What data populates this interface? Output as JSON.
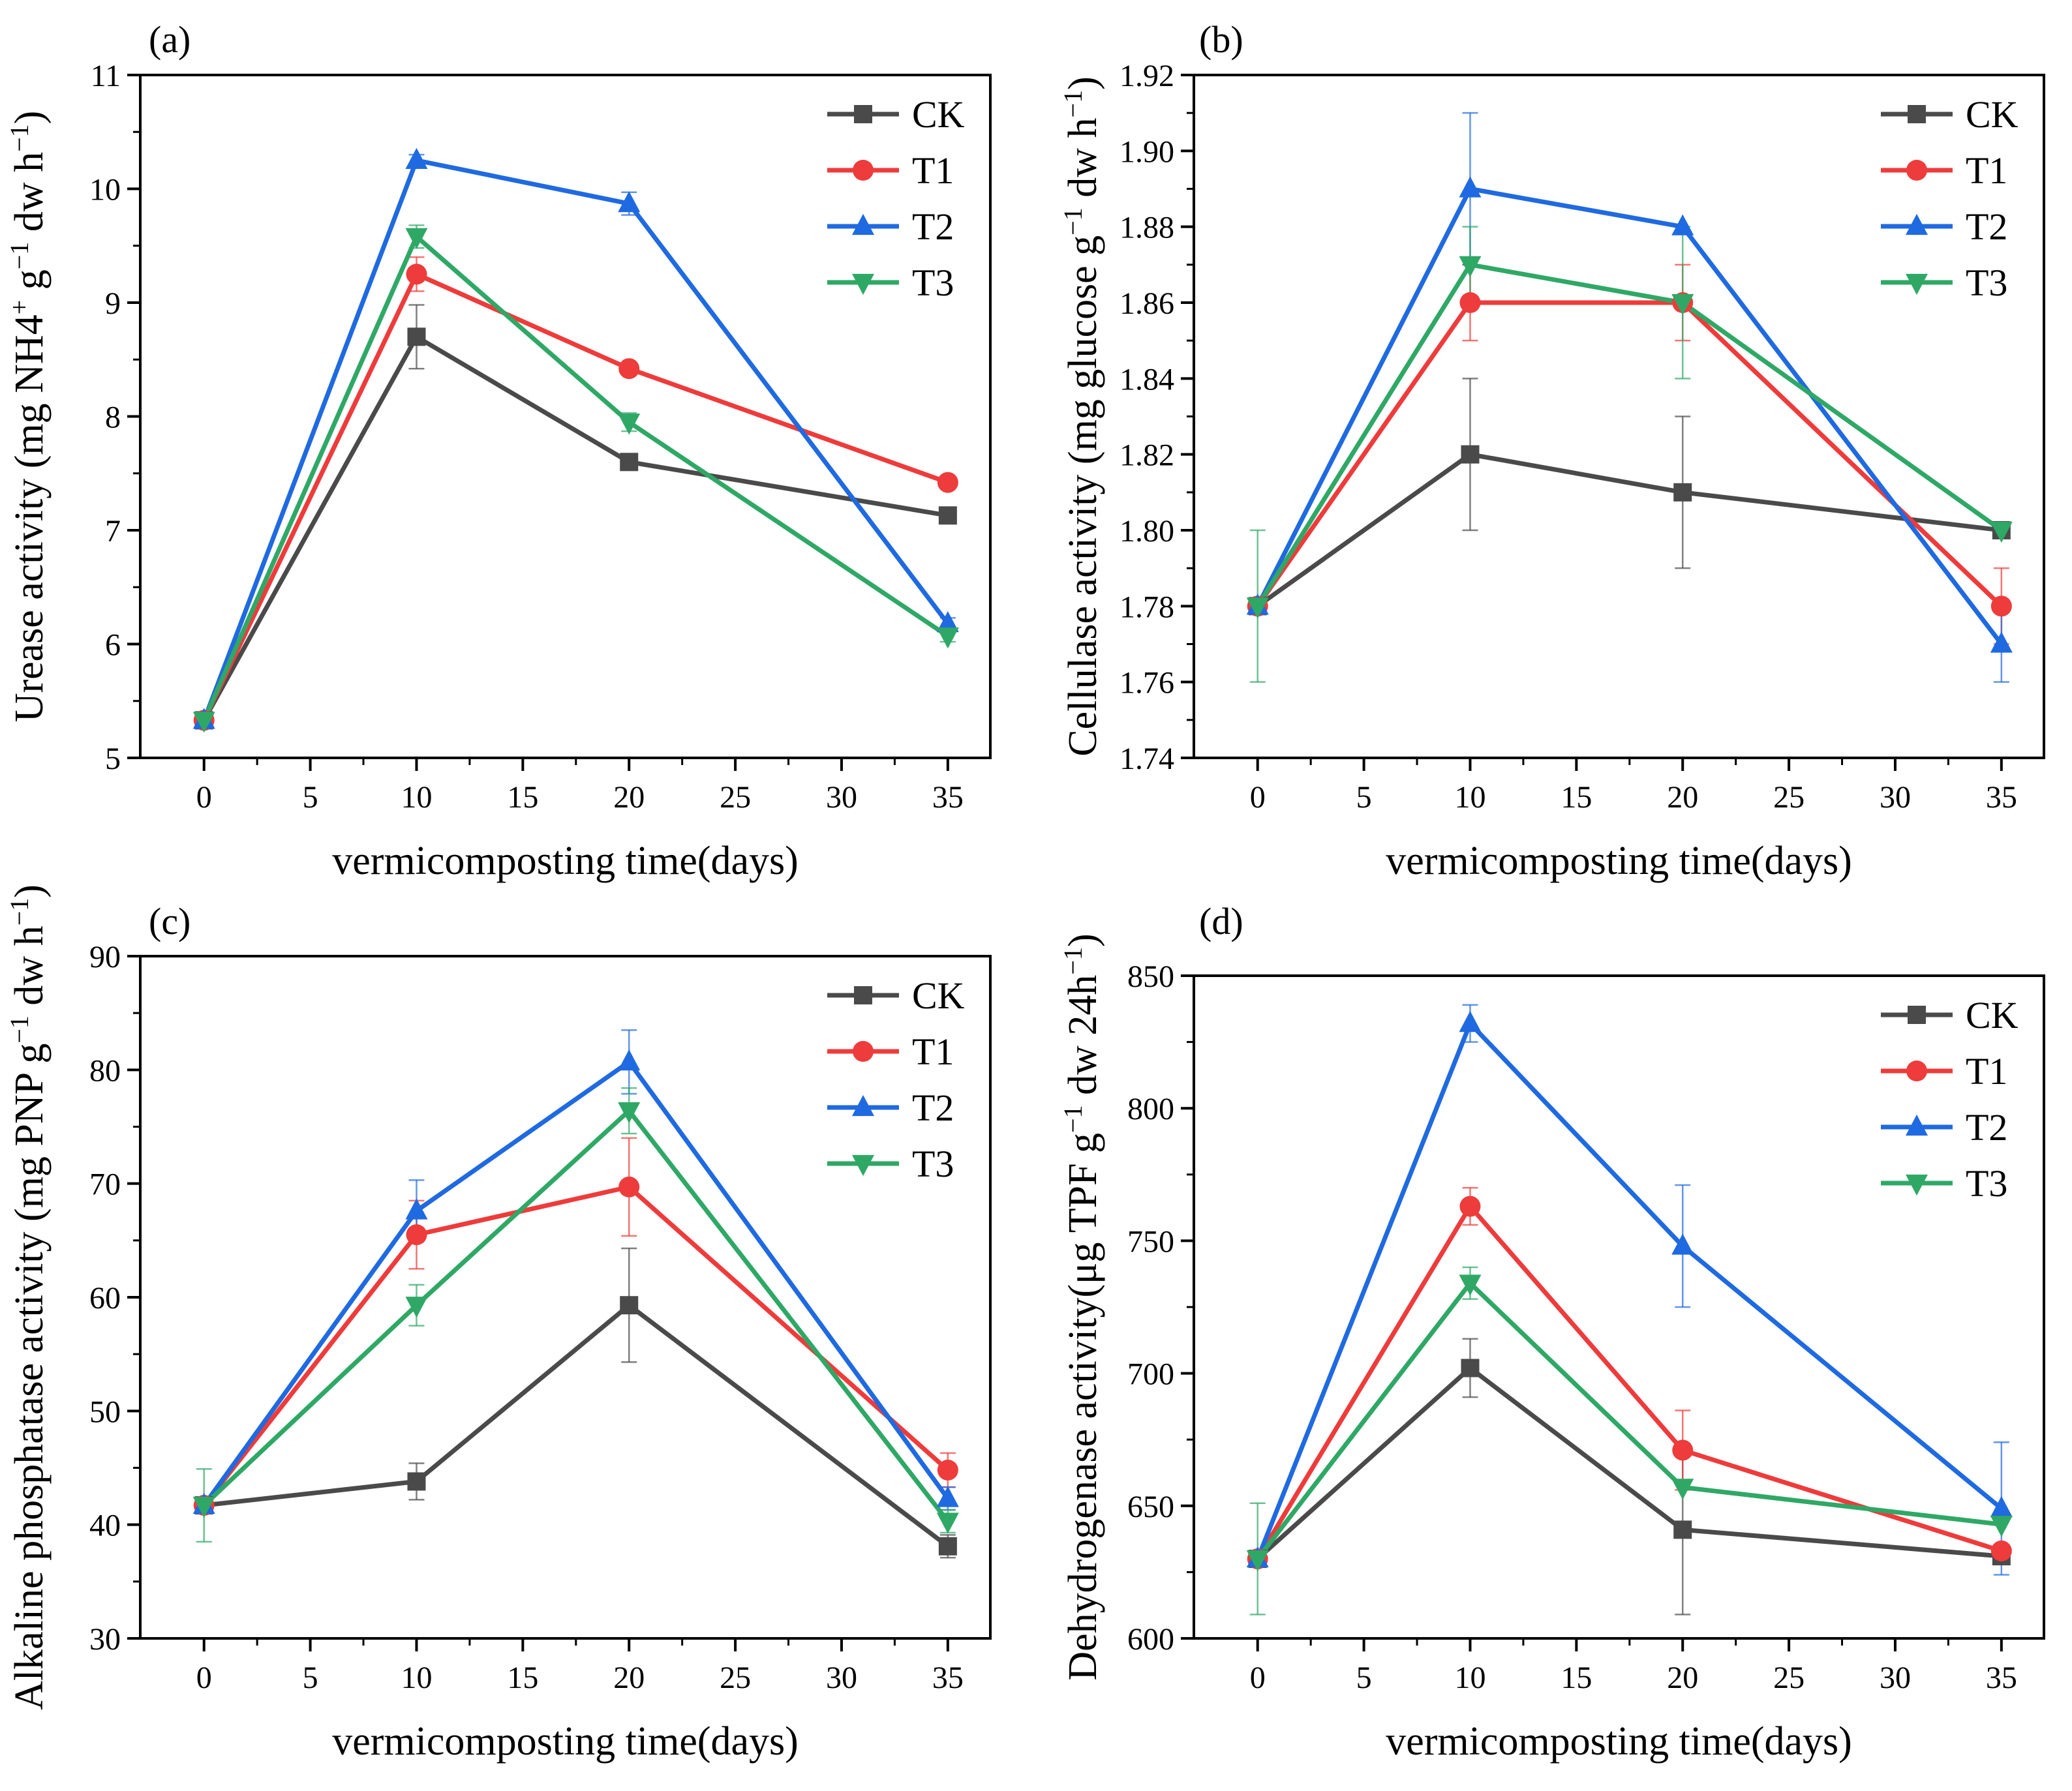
{
  "figure": {
    "background": "#ffffff"
  },
  "series_styles": {
    "CK": {
      "color": "#4a4a4a",
      "marker": "square"
    },
    "T1": {
      "color": "#ee3b3b",
      "marker": "circle"
    },
    "T2": {
      "color": "#1f6ae0",
      "marker": "triangle-up"
    },
    "T3": {
      "color": "#2fa866",
      "marker": "triangle-down"
    }
  },
  "chart_data": [
    {
      "type": "line",
      "panel_label": "(a)",
      "xlabel": "vermicomposting time(days)",
      "ylabel_parts": [
        {
          "text": "Urease activity (mg NH4"
        },
        {
          "text": "+",
          "sup": true
        },
        {
          "text": " g"
        },
        {
          "text": "−1",
          "sup": true
        },
        {
          "text": " dw h"
        },
        {
          "text": "−1",
          "sup": true
        },
        {
          "text": ")"
        }
      ],
      "x": [
        0,
        10,
        20,
        35
      ],
      "xlim": [
        -3,
        37
      ],
      "xticks": [
        0,
        5,
        10,
        15,
        20,
        25,
        30,
        35
      ],
      "ylim": [
        5,
        11
      ],
      "yticks": [
        5,
        6,
        7,
        8,
        9,
        10,
        11
      ],
      "ytick_labels": [
        "5",
        "6",
        "7",
        "8",
        "9",
        "10",
        "11"
      ],
      "legend_position": "top-right",
      "series": [
        {
          "name": "CK",
          "values": [
            5.33,
            8.7,
            7.6,
            7.13
          ],
          "errors": [
            0.05,
            0.28,
            0.05,
            0.05
          ]
        },
        {
          "name": "T1",
          "values": [
            5.33,
            9.25,
            8.42,
            7.42
          ],
          "errors": [
            0.05,
            0.15,
            0.05,
            0.05
          ]
        },
        {
          "name": "T2",
          "values": [
            5.33,
            10.25,
            9.87,
            6.18
          ],
          "errors": [
            0.05,
            0.05,
            0.1,
            0.05
          ]
        },
        {
          "name": "T3",
          "values": [
            5.33,
            9.58,
            7.95,
            6.07
          ],
          "errors": [
            0.05,
            0.1,
            0.08,
            0.05
          ]
        }
      ]
    },
    {
      "type": "line",
      "panel_label": "(b)",
      "xlabel": "vermicomposting time(days)",
      "ylabel_parts": [
        {
          "text": "Cellulase activity (mg glucose g"
        },
        {
          "text": "−1",
          "sup": true
        },
        {
          "text": " dw h"
        },
        {
          "text": "−1",
          "sup": true
        },
        {
          "text": ")"
        }
      ],
      "x": [
        0,
        10,
        20,
        35
      ],
      "xlim": [
        -3,
        37
      ],
      "xticks": [
        0,
        5,
        10,
        15,
        20,
        25,
        30,
        35
      ],
      "ylim": [
        1.74,
        1.92
      ],
      "yticks": [
        1.74,
        1.76,
        1.78,
        1.8,
        1.82,
        1.84,
        1.86,
        1.88,
        1.9,
        1.92
      ],
      "ytick_labels": [
        "1.74",
        "1.76",
        "1.78",
        "1.80",
        "1.82",
        "1.84",
        "1.86",
        "1.88",
        "1.90",
        "1.92"
      ],
      "legend_position": "top-right",
      "series": [
        {
          "name": "CK",
          "values": [
            1.78,
            1.82,
            1.81,
            1.8
          ],
          "errors": [
            0.0,
            0.02,
            0.02,
            0.0
          ]
        },
        {
          "name": "T1",
          "values": [
            1.78,
            1.86,
            1.86,
            1.78
          ],
          "errors": [
            0.0,
            0.01,
            0.01,
            0.01
          ]
        },
        {
          "name": "T2",
          "values": [
            1.78,
            1.89,
            1.88,
            1.77
          ],
          "errors": [
            0.0,
            0.02,
            0.0,
            0.01
          ]
        },
        {
          "name": "T3",
          "values": [
            1.78,
            1.87,
            1.86,
            1.8
          ],
          "errors": [
            0.02,
            0.01,
            0.02,
            0.0
          ]
        }
      ]
    },
    {
      "type": "line",
      "panel_label": "(c)",
      "xlabel": "vermicomposting time(days)",
      "ylabel_parts": [
        {
          "text": "Alkaline phosphatase activity (mg PNP g"
        },
        {
          "text": "−1",
          "sup": true
        },
        {
          "text": " dw h"
        },
        {
          "text": "−1",
          "sup": true
        },
        {
          "text": ")"
        }
      ],
      "x": [
        0,
        10,
        20,
        35
      ],
      "xlim": [
        -3,
        37
      ],
      "xticks": [
        0,
        5,
        10,
        15,
        20,
        25,
        30,
        35
      ],
      "ylim": [
        30,
        90
      ],
      "yticks": [
        30,
        40,
        50,
        60,
        70,
        80,
        90
      ],
      "ytick_labels": [
        "30",
        "40",
        "50",
        "60",
        "70",
        "80",
        "90"
      ],
      "legend_position": "top-right",
      "series": [
        {
          "name": "CK",
          "values": [
            41.7,
            43.8,
            59.3,
            38.1
          ],
          "errors": [
            0.5,
            1.6,
            5.0,
            1.0
          ]
        },
        {
          "name": "T1",
          "values": [
            41.7,
            65.5,
            69.7,
            44.8
          ],
          "errors": [
            0.5,
            3.0,
            4.3,
            1.5
          ]
        },
        {
          "name": "T2",
          "values": [
            41.7,
            67.6,
            80.7,
            42.3
          ],
          "errors": [
            0.5,
            2.7,
            2.8,
            1.0
          ]
        },
        {
          "name": "T3",
          "values": [
            41.7,
            59.3,
            76.4,
            40.3
          ],
          "errors": [
            3.2,
            1.8,
            2.0,
            1.0
          ]
        }
      ]
    },
    {
      "type": "line",
      "panel_label": "(d)",
      "xlabel": "vermicomposting time(days)",
      "ylabel_parts": [
        {
          "text": "Dehydrogenase activity(μg TPF g"
        },
        {
          "text": "−1",
          "sup": true
        },
        {
          "text": " dw 24h"
        },
        {
          "text": "−1",
          "sup": true
        },
        {
          "text": ")"
        }
      ],
      "x": [
        0,
        10,
        20,
        35
      ],
      "xlim": [
        -3,
        37
      ],
      "xticks": [
        0,
        5,
        10,
        15,
        20,
        25,
        30,
        35
      ],
      "ylim": [
        600,
        850
      ],
      "yticks": [
        600,
        650,
        700,
        750,
        800,
        850
      ],
      "ytick_labels": [
        "600",
        "650",
        "700",
        "750",
        "800",
        "850"
      ],
      "legend_position": "top-right",
      "series": [
        {
          "name": "CK",
          "values": [
            630,
            702,
            641,
            631
          ],
          "errors": [
            0,
            11,
            32,
            0
          ]
        },
        {
          "name": "T1",
          "values": [
            630,
            763,
            671,
            633
          ],
          "errors": [
            0,
            7,
            15,
            0
          ]
        },
        {
          "name": "T2",
          "values": [
            630,
            832,
            748,
            649
          ],
          "errors": [
            0,
            7,
            23,
            25
          ]
        },
        {
          "name": "T3",
          "values": [
            630,
            734,
            657,
            643
          ],
          "errors": [
            21,
            6,
            0,
            0
          ]
        }
      ]
    }
  ]
}
